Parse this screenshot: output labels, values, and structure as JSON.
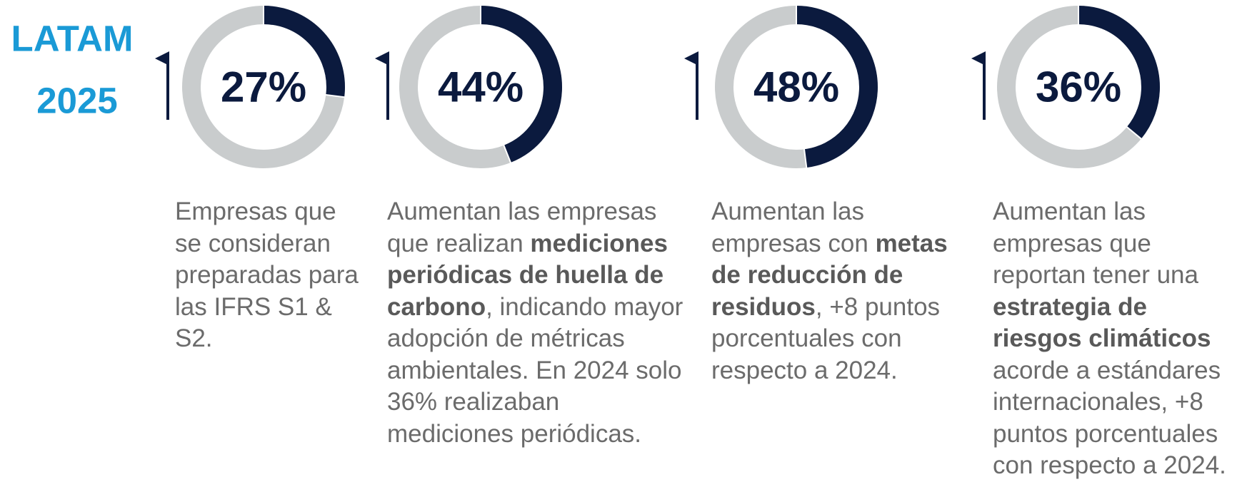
{
  "title": [
    "LATAM",
    "2025"
  ],
  "cards": [
    {
      "value": 27,
      "value_label": "27%",
      "text": [
        {
          "text": "Empresas que se consideran preparadas para las IFRS S1 & S2.",
          "bold": false
        }
      ]
    },
    {
      "value": 44,
      "value_label": "44%",
      "text": [
        {
          "text": "Aumentan las empresas que realizan ",
          "bold": false
        },
        {
          "text": "mediciones periódicas de huella de carbono",
          "bold": true
        },
        {
          "text": ", indicando mayor adopción de métricas ambientales. En 2024 solo 36% realizaban mediciones periódicas.",
          "bold": false
        }
      ]
    },
    {
      "value": 48,
      "value_label": "48%",
      "text": [
        {
          "text": "Aumentan las empresas con ",
          "bold": false
        },
        {
          "text": "metas de reducción de residuos",
          "bold": true
        },
        {
          "text": ", +8 puntos porcentuales con respecto a 2024.",
          "bold": false
        }
      ]
    },
    {
      "value": 36,
      "value_label": "36%",
      "text": [
        {
          "text": "Aumentan las empresas que reportan tener una ",
          "bold": false
        },
        {
          "text": "estrategia de riesgos climáticos",
          "bold": true
        },
        {
          "text": " acorde a estándares internacionales, +8 puntos porcentuales con respecto a 2024.",
          "bold": false
        }
      ]
    }
  ],
  "colors": {
    "filled": "#0b1a3e",
    "empty": "#c9cccd"
  }
}
